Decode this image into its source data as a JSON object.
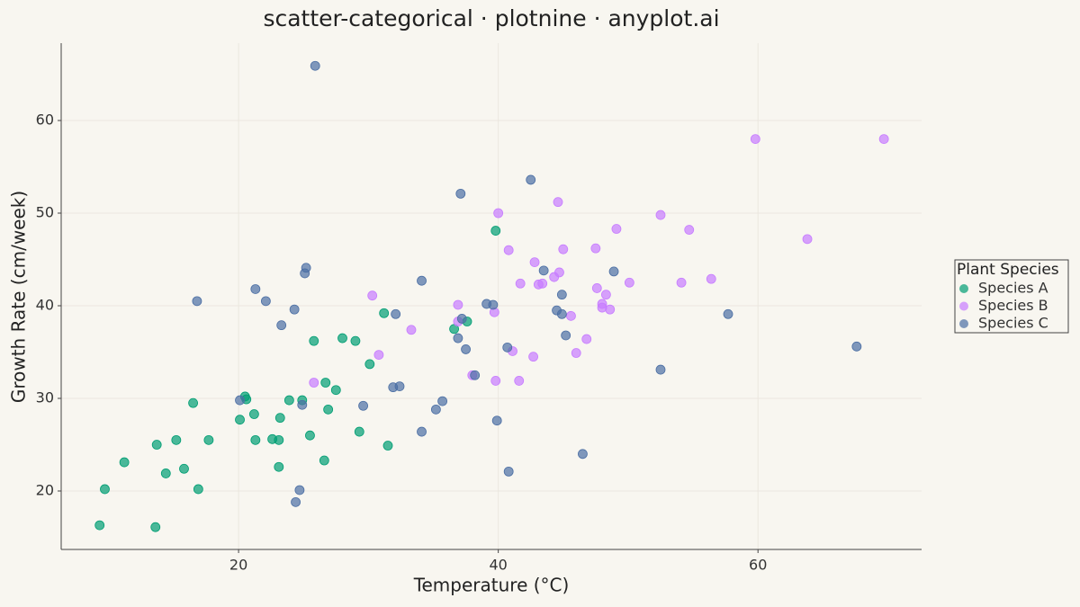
{
  "chart_data": {
    "type": "scatter",
    "title": "scatter-categorical · plotnine · anyplot.ai",
    "x_label": "Temperature (°C)",
    "y_label": "Growth Rate (cm/week)",
    "legend_title": "Plant Species",
    "legend": "right",
    "grid": true,
    "xlim": [
      6.34,
      72.6
    ],
    "ylim": [
      13.69,
      68.35
    ],
    "xticks": [
      20,
      40,
      60
    ],
    "yticks": [
      20,
      30,
      40,
      50,
      60
    ],
    "series": [
      {
        "name": "Species A",
        "color": "#009e73",
        "x": [
          9.3,
          9.7,
          11.2,
          13.6,
          13.7,
          14.4,
          15.2,
          15.8,
          16.5,
          16.9,
          17.7,
          20.1,
          20.5,
          20.6,
          21.2,
          21.3,
          22.6,
          23.1,
          23.2,
          23.1,
          23.9,
          24.9,
          25.5,
          25.8,
          26.6,
          26.7,
          26.9,
          27.5,
          28.0,
          29.0,
          29.3,
          30.1,
          31.2,
          31.5,
          36.6,
          37.6,
          39.8
        ],
        "values": [
          16.3,
          20.2,
          23.1,
          16.1,
          25.0,
          21.9,
          25.5,
          22.4,
          29.5,
          20.2,
          25.5,
          27.7,
          30.2,
          29.9,
          28.3,
          25.5,
          25.6,
          25.5,
          27.9,
          22.6,
          29.8,
          29.8,
          26.0,
          36.2,
          23.3,
          31.7,
          28.8,
          30.9,
          36.5,
          36.2,
          26.4,
          33.7,
          39.2,
          24.9,
          37.5,
          38.3,
          48.1
        ]
      },
      {
        "name": "Species B",
        "color": "#c77cff",
        "x": [
          25.8,
          30.3,
          30.8,
          33.3,
          36.9,
          36.9,
          38.0,
          39.7,
          39.8,
          40.0,
          40.8,
          41.1,
          41.6,
          41.7,
          42.7,
          42.8,
          43.1,
          43.4,
          44.3,
          44.6,
          44.7,
          45.0,
          45.6,
          46.0,
          46.8,
          47.5,
          47.6,
          48.0,
          48.0,
          48.3,
          48.6,
          49.1,
          50.1,
          52.5,
          54.1,
          54.7,
          56.4,
          59.8,
          63.8,
          69.7
        ],
        "values": [
          31.7,
          41.1,
          34.7,
          37.4,
          40.1,
          38.3,
          32.5,
          39.3,
          31.9,
          50.0,
          46.0,
          35.1,
          31.9,
          42.4,
          34.5,
          44.7,
          42.3,
          42.4,
          43.1,
          51.2,
          43.6,
          46.1,
          38.9,
          34.9,
          36.4,
          46.2,
          41.9,
          40.2,
          39.8,
          41.2,
          39.6,
          48.3,
          42.5,
          49.8,
          42.5,
          48.2,
          42.9,
          58.0,
          47.2,
          58.0
        ]
      },
      {
        "name": "Species C",
        "color": "#4c6fa4",
        "x": [
          16.8,
          20.1,
          21.3,
          22.1,
          23.3,
          24.3,
          24.4,
          24.7,
          24.9,
          25.1,
          25.2,
          25.9,
          29.6,
          31.9,
          32.1,
          32.4,
          34.1,
          34.1,
          35.2,
          35.7,
          36.9,
          37.1,
          37.2,
          37.5,
          38.2,
          39.1,
          39.6,
          39.9,
          40.7,
          40.8,
          42.5,
          43.5,
          44.5,
          44.9,
          44.9,
          45.2,
          46.5,
          48.9,
          52.5,
          57.7,
          67.6
        ],
        "values": [
          40.5,
          29.8,
          41.8,
          40.5,
          37.9,
          39.6,
          18.8,
          20.1,
          29.3,
          43.5,
          44.1,
          65.9,
          29.2,
          31.2,
          39.1,
          31.3,
          42.7,
          26.4,
          28.8,
          29.7,
          36.5,
          52.1,
          38.6,
          35.3,
          32.5,
          40.2,
          40.1,
          27.6,
          35.5,
          22.1,
          53.6,
          43.8,
          39.5,
          39.1,
          41.2,
          36.8,
          24.0,
          43.7,
          33.1,
          39.1,
          35.6
        ]
      }
    ]
  }
}
